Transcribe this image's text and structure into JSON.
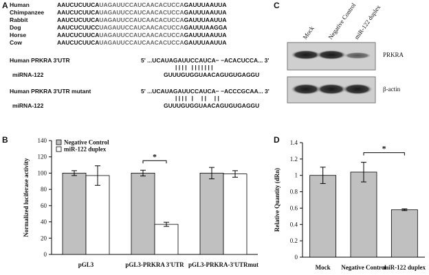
{
  "panel_labels": [
    "A",
    "B",
    "C",
    "D"
  ],
  "panel_a": {
    "alignment": [
      {
        "species": "Human",
        "segments": [
          "AAUCUCUUCA",
          "UAGAUUCCAUCAACACUCCA",
          "GAUUUAAUUA"
        ]
      },
      {
        "species": "Chimpanzee",
        "segments": [
          "AAUCUCUUCA",
          "UAGAUUCCAUCAACACUCCA",
          "GAUUUAAUUA"
        ]
      },
      {
        "species": "Rabbit",
        "segments": [
          "AAUCUCUUCA",
          "UAGAUUCCAUCAACACUCCA",
          "GAUUUAAUUA"
        ]
      },
      {
        "species": "Dog",
        "segments": [
          "AAUCUCUUCC",
          "UAGAUUCCAUCAACACUCCA",
          "GAUUUAAGGA"
        ]
      },
      {
        "species": "Horse",
        "segments": [
          "AAUCUCUUCA",
          "UAGAUUCCAUCAACACUCCA",
          "GAUUUAAUUA"
        ]
      },
      {
        "species": "Cow",
        "segments": [
          "AAUCUCUUCA",
          "UAGAUUCCAUCAACACUCCA",
          "GAUUUAAUUA"
        ]
      }
    ],
    "duplexes": [
      {
        "target_name": "Human PRKRA 3'UTR",
        "target_seq": "5' ...UCAUAGAUUCCAUCA− −ACACUCCA... 3'",
        "pairing": "| | | |   | | | | | | |",
        "mirna_name": "miRNA-122",
        "mirna_seq": "GUUUGUGGUAACAGUGUGAGGU"
      },
      {
        "target_name": "Human PRKRA 3'UTR mutant",
        "target_seq": "5' ...UCAUAGAUUCCAUCA− −ACCCGCAA... 3'",
        "pairing": "| | | |   |     | |     | |",
        "mirna_name": "miRNA-122",
        "mirna_seq": "GUUUGUGGUAACAGUGUGAGGU"
      }
    ]
  },
  "panel_c": {
    "lanes": [
      "Mock",
      "Negative Control",
      "miR-122 duplex"
    ],
    "rows": [
      "PRKRA",
      "β-actin"
    ]
  },
  "chart_data": [
    {
      "type": "bar",
      "ylabel": "Normalized luciferase activity",
      "categories": [
        "pGL3",
        "pGL3-PRKRA 3'UTR",
        "pGL3-PRKRA-3'UTRmut"
      ],
      "series": [
        {
          "name": "Negative Control",
          "color": "#c0c0c0",
          "values": [
            100,
            100,
            100
          ],
          "errors": [
            3,
            3.5,
            7
          ]
        },
        {
          "name": "miR-122 duplex",
          "color": "#ffffff",
          "values": [
            97,
            37,
            99
          ],
          "errors": [
            12,
            2.5,
            4
          ]
        }
      ],
      "ylim": [
        0,
        140
      ],
      "yticks": [
        0,
        20,
        40,
        60,
        80,
        100,
        120,
        140
      ],
      "legend": "upper left",
      "significance": "*"
    },
    {
      "type": "bar",
      "ylabel": "Relative Quantity (dRn)",
      "categories": [
        "Mock",
        "Negative Control",
        "miR-122 duplex"
      ],
      "series": [
        {
          "color": "#c0c0c0",
          "values": [
            1.0,
            1.04,
            0.58
          ],
          "errors": [
            0.1,
            0.12,
            0.01
          ]
        }
      ],
      "ylim": [
        0,
        1.4
      ],
      "yticks": [
        0,
        0.2,
        0.4,
        0.6,
        0.8,
        1,
        1.2,
        1.4
      ],
      "significance": "*"
    }
  ]
}
